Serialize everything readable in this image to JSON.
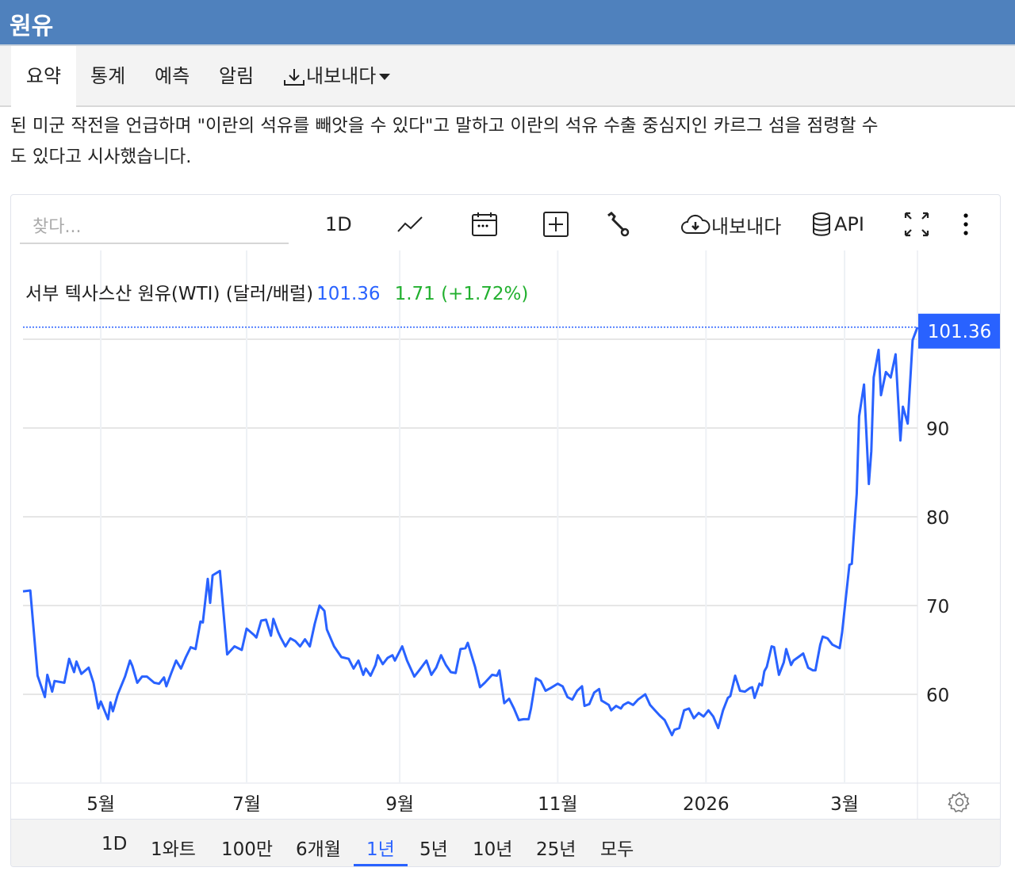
{
  "header": {
    "title": "원유"
  },
  "tabs": [
    {
      "label": "요약",
      "active": true
    },
    {
      "label": "통계"
    },
    {
      "label": "예측"
    },
    {
      "label": "알림"
    },
    {
      "label": "내보내다",
      "icon": "download-icon"
    }
  ],
  "article": {
    "lines": [
      "된 미군 작전을 언급하며 \"이란의 석유를 빼앗을 수 있다\"고 말하고 이란의 석유 수출 중심지인 카르그 섬을 점령할 수",
      "도 있다고 시사했습니다."
    ]
  },
  "toolbar": {
    "search_placeholder": "찾다...",
    "interval": "1D",
    "export_label": "내보내다",
    "api_label": "API"
  },
  "legend": {
    "name": "서부 텍사스산 원유(WTI) (달러/배럴)",
    "price": "101.36",
    "change": "1.71 (+1.72%)"
  },
  "colors": {
    "line": "#2962ff",
    "up": "#22b02f",
    "header": "#4f81bd"
  },
  "ranges": [
    {
      "label": "1D"
    },
    {
      "label": "1와트"
    },
    {
      "label": "100만"
    },
    {
      "label": "6개월"
    },
    {
      "label": "1년",
      "active": true
    },
    {
      "label": "5년"
    },
    {
      "label": "10년"
    },
    {
      "label": "25년"
    },
    {
      "label": "모두"
    }
  ],
  "chart_data": {
    "type": "line",
    "title": "서부 텍사스산 원유(WTI) (달러/배럴)",
    "xlabel": "",
    "ylabel": "",
    "x_unit": "days since start",
    "xlim": [
      0,
      368
    ],
    "ylim": [
      50,
      110
    ],
    "last_value_label": "101.36",
    "y_ticks": [
      {
        "v": 60,
        "label": "60"
      },
      {
        "v": 70,
        "label": "70"
      },
      {
        "v": 80,
        "label": "80"
      },
      {
        "v": 90,
        "label": "90"
      }
    ],
    "x_ticks": [
      {
        "v": 32,
        "label": "5월"
      },
      {
        "v": 92,
        "label": "7월"
      },
      {
        "v": 155,
        "label": "9월"
      },
      {
        "v": 220,
        "label": "11월"
      },
      {
        "v": 281,
        "label": "2026"
      },
      {
        "v": 338,
        "label": "3월"
      }
    ],
    "x": [
      0,
      3,
      6,
      9,
      10,
      12,
      13,
      17,
      19,
      21,
      22,
      24,
      27,
      29,
      31,
      32,
      35,
      36,
      37,
      39,
      42,
      44,
      45,
      47,
      49,
      51,
      54,
      56,
      58,
      59,
      61,
      63,
      65,
      67,
      69,
      71,
      73,
      74,
      76,
      77,
      78,
      81,
      84,
      87,
      90,
      92,
      95,
      96,
      98,
      100,
      102,
      103,
      105,
      106,
      108,
      110,
      112,
      114,
      116,
      118,
      120,
      122,
      124,
      125,
      128,
      131,
      134,
      136,
      138,
      140,
      141,
      143,
      145,
      146,
      148,
      150,
      152,
      153,
      156,
      158,
      161,
      163,
      166,
      168,
      170,
      172,
      174,
      176,
      178,
      180,
      182,
      183,
      186,
      188,
      190,
      193,
      195,
      196,
      198,
      200,
      202,
      204,
      206,
      208,
      209,
      211,
      213,
      215,
      217,
      220,
      222,
      224,
      226,
      228,
      230,
      231,
      233,
      235,
      237,
      238,
      241,
      242,
      244,
      246,
      247,
      249,
      251,
      253,
      256,
      258,
      260,
      262,
      264,
      267,
      268,
      270,
      272,
      274,
      276,
      278,
      280,
      282,
      284,
      286,
      288,
      290,
      291,
      293,
      295,
      297,
      299,
      300,
      301,
      303,
      304,
      305,
      306,
      308,
      309,
      311,
      313,
      314,
      316,
      317,
      319,
      321,
      323,
      325,
      326,
      328,
      329,
      331,
      333,
      336,
      337,
      340,
      341,
      343,
      344,
      346,
      348,
      349,
      350,
      352,
      353,
      355,
      357,
      359,
      361,
      362,
      364,
      366,
      368
    ],
    "series": [
      {
        "name": "WTI",
        "values": [
          71.6,
          71.7,
          62.1,
          59.7,
          62.2,
          60.3,
          61.5,
          61.3,
          64.0,
          62.5,
          63.7,
          62.3,
          63.0,
          61.3,
          58.4,
          59.2,
          57.2,
          59.1,
          58.1,
          60.0,
          62.0,
          63.8,
          63.2,
          61.3,
          62.0,
          62.0,
          61.3,
          61.2,
          61.9,
          60.9,
          62.4,
          63.8,
          62.9,
          64.2,
          65.3,
          65.1,
          68.2,
          68.1,
          73.0,
          70.3,
          73.4,
          73.9,
          64.5,
          65.4,
          65.0,
          67.4,
          66.7,
          66.4,
          68.3,
          68.4,
          66.6,
          68.5,
          67.0,
          66.4,
          65.4,
          66.3,
          66.0,
          65.4,
          66.2,
          65.4,
          67.9,
          70.0,
          69.4,
          67.3,
          65.4,
          64.2,
          64.0,
          62.9,
          63.8,
          62.2,
          62.9,
          62.1,
          63.3,
          64.4,
          63.4,
          64.1,
          64.4,
          63.8,
          65.4,
          63.8,
          62.0,
          62.7,
          63.8,
          62.2,
          63.0,
          64.4,
          63.3,
          62.5,
          62.4,
          65.1,
          65.2,
          65.8,
          63.1,
          60.8,
          61.3,
          62.2,
          62.1,
          62.7,
          59.0,
          59.5,
          58.4,
          57.1,
          57.2,
          57.2,
          58.4,
          61.8,
          61.5,
          60.4,
          60.7,
          61.2,
          60.9,
          59.7,
          59.4,
          60.4,
          60.9,
          58.7,
          58.9,
          60.2,
          60.6,
          59.3,
          58.8,
          58.2,
          58.7,
          58.4,
          58.8,
          59.1,
          58.8,
          59.4,
          60.0,
          58.8,
          58.2,
          57.6,
          57.1,
          55.4,
          56.0,
          56.2,
          58.2,
          58.4,
          57.3,
          57.9,
          57.5,
          58.2,
          57.5,
          56.2,
          58.2,
          59.6,
          59.8,
          62.1,
          60.4,
          60.3,
          60.7,
          60.8,
          59.6,
          61.2,
          61.0,
          62.6,
          63.1,
          65.4,
          65.3,
          62.2,
          63.6,
          65.1,
          63.3,
          63.8,
          64.2,
          64.6,
          63.0,
          62.7,
          62.7,
          65.6,
          66.5,
          66.3,
          65.6,
          65.2,
          67.0,
          74.6,
          74.7,
          82.6,
          91.3,
          94.9,
          83.7,
          87.4,
          95.7,
          98.8,
          93.7,
          96.3,
          95.7,
          98.3,
          88.6,
          92.4,
          90.5,
          99.9,
          101.36
        ]
      }
    ],
    "grid": true,
    "legend_position": "top-left"
  }
}
